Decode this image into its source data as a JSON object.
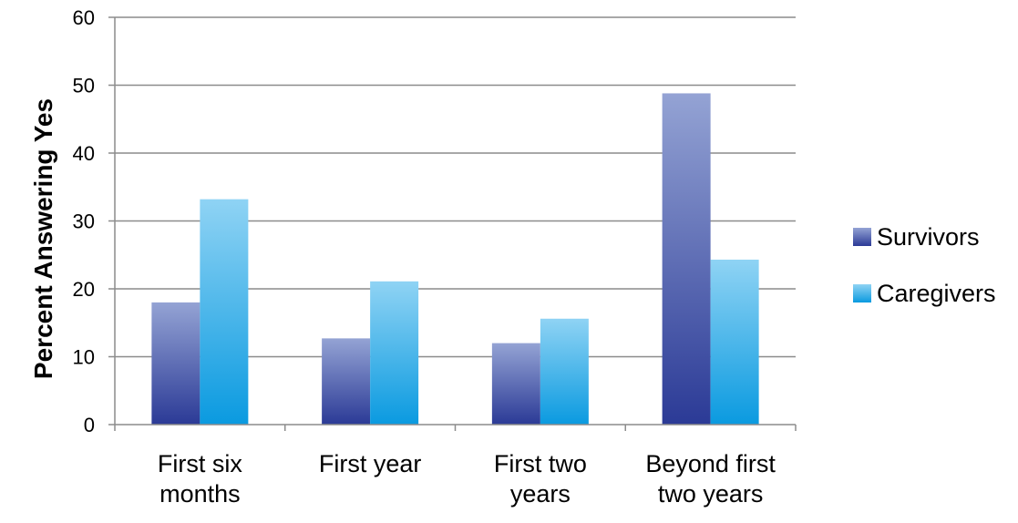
{
  "chart_data": {
    "type": "bar",
    "title": "",
    "xlabel": "",
    "ylabel": "Percent Answering Yes",
    "categories": [
      [
        "First six",
        "months"
      ],
      [
        "First year"
      ],
      [
        "First two",
        "years"
      ],
      [
        "Beyond first",
        "two years"
      ]
    ],
    "series": [
      {
        "name": "Survivors",
        "values": [
          18,
          12.7,
          12,
          48.8
        ],
        "color_top": "#94a3d4",
        "color_bottom": "#2b3a96"
      },
      {
        "name": "Caregivers",
        "values": [
          33.2,
          21.1,
          15.6,
          24.3
        ],
        "color_top": "#8fd3f4",
        "color_bottom": "#0a9ae0"
      }
    ],
    "ylim": [
      0,
      60
    ],
    "yticks": [
      0,
      10,
      20,
      30,
      40,
      50,
      60
    ],
    "grid": true,
    "legend": "right"
  }
}
